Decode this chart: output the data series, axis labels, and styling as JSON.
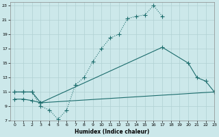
{
  "xlabel": "Humidex (Indice chaleur)",
  "xlim": [
    -0.5,
    23
  ],
  "ylim": [
    7,
    23.5
  ],
  "xticks": [
    0,
    1,
    2,
    3,
    4,
    5,
    6,
    7,
    8,
    9,
    10,
    11,
    12,
    13,
    14,
    15,
    16,
    17,
    18,
    19,
    20,
    21,
    22,
    23
  ],
  "yticks": [
    7,
    9,
    11,
    13,
    15,
    17,
    19,
    21,
    23
  ],
  "bg_color": "#cce8ea",
  "grid_color": "#b0d0d3",
  "line_color": "#1a6b6b",
  "curve1_x": [
    0,
    1,
    2,
    3,
    4,
    5,
    6,
    7,
    8,
    9,
    10,
    11,
    12,
    13,
    14,
    15,
    16,
    17
  ],
  "curve1_y": [
    11,
    11,
    11,
    9,
    8.5,
    7.2,
    8.5,
    12,
    13,
    15.2,
    17,
    18.5,
    19,
    21.2,
    21.5,
    21.7,
    23.0,
    21.5
  ],
  "curve2_x": [
    0,
    1,
    2,
    3,
    17,
    20,
    21,
    22,
    23
  ],
  "curve2_y": [
    11,
    11,
    11,
    9.5,
    17.2,
    15,
    13,
    12.5,
    11
  ],
  "curve3_x": [
    0,
    1,
    2,
    3,
    23
  ],
  "curve3_y": [
    10.0,
    10.0,
    9.8,
    9.5,
    11.0
  ]
}
